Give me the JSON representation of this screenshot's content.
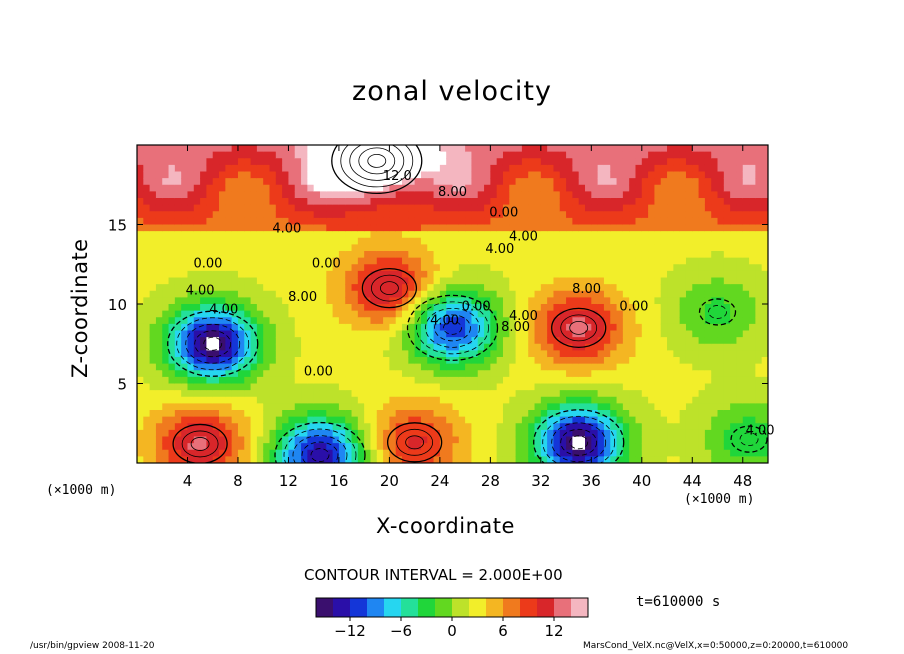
{
  "title": "zonal velocity",
  "chart_data": {
    "type": "heatmap",
    "title": "zonal velocity",
    "xlabel": "X-coordinate",
    "ylabel": "Z-coordinate",
    "x_unit": "(×1000 m)",
    "xlim": [
      0,
      50
    ],
    "ylim": [
      0,
      20
    ],
    "x_ticks": [
      4,
      8,
      12,
      16,
      20,
      24,
      28,
      32,
      36,
      40,
      44,
      48
    ],
    "y_ticks": [
      5,
      10,
      15
    ],
    "contour_interval": "CONTOUR INTERVAL = 2.000E+00",
    "colorbar": {
      "ticks": [
        -12,
        -6,
        0,
        6,
        12
      ],
      "min": -16,
      "max": 16
    },
    "contour_labels": [
      "12.0",
      "8.00",
      "0.00",
      "4.00",
      "4.00",
      "0.00",
      "4.00",
      "0.00",
      "4.00",
      "8.00",
      "4.00",
      "0.00",
      "4.00",
      "8.00",
      "0.00",
      "4.00",
      "8.00",
      "0.00",
      "4.00"
    ],
    "features": [
      {
        "x": 6,
        "z": 7.5,
        "value": -16
      },
      {
        "x": 25,
        "z": 8.5,
        "value": -12
      },
      {
        "x": 35,
        "z": 1.3,
        "value": -16
      },
      {
        "x": 14.5,
        "z": 0.5,
        "value": -14
      },
      {
        "x": 35,
        "z": 8.5,
        "value": 12
      },
      {
        "x": 20,
        "z": 11,
        "value": 12
      },
      {
        "x": 5,
        "z": 1.2,
        "value": 12
      },
      {
        "x": 22,
        "z": 1.3,
        "value": 10
      },
      {
        "x": 19,
        "z": 19,
        "value": 16
      },
      {
        "x": 48.5,
        "z": 1.5,
        "value": -4
      },
      {
        "x": 46,
        "z": 9.5,
        "value": -3
      }
    ]
  },
  "time_label": "t=610000 s",
  "footer_left": "/usr/bin/gpview   2008-11-20",
  "footer_right": "MarsCond_VelX.nc@VelX,x=0:50000,z=0:20000,t=610000",
  "palette": [
    "#3a0f6e",
    "#2a0fa8",
    "#1436d8",
    "#1f86f2",
    "#26d6f0",
    "#24e09a",
    "#20d63a",
    "#62d820",
    "#bde22a",
    "#f2ee2a",
    "#f4b622",
    "#f07a1e",
    "#ec3a1a",
    "#d8262a",
    "#e8707a",
    "#f4b6c0"
  ]
}
